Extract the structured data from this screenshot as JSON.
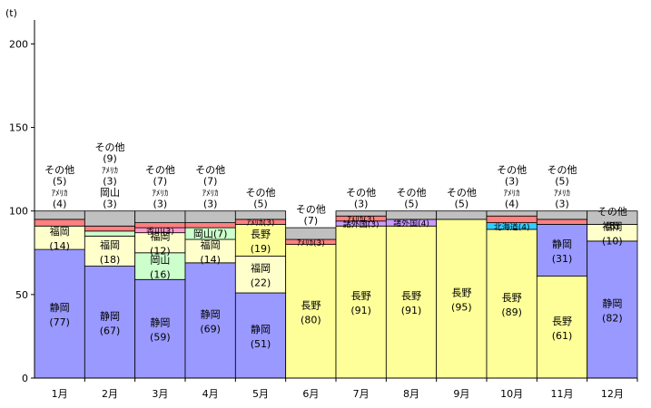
{
  "chart_data": {
    "type": "bar",
    "stacked": true,
    "title": "",
    "unit_label": "(t)",
    "xlabel": "",
    "ylabel": "",
    "ylim": [
      0,
      210
    ],
    "yticks": [
      0,
      50,
      100,
      150,
      200
    ],
    "categories": [
      "1月",
      "2月",
      "3月",
      "4月",
      "5月",
      "6月",
      "7月",
      "8月",
      "9月",
      "10月",
      "11月",
      "12月"
    ],
    "colors": {
      "静岡": "#9999ff",
      "長野": "#ffff99",
      "福岡": "#ffffcc",
      "岡山": "#ccffcc",
      "香川": "#ff99cc",
      "諸外国": "#cc99ff",
      "北海道": "#33ccff",
      "アメリカ": "#ff8080",
      "その他": "#c0c0c0"
    },
    "stacks": [
      {
        "category": "1月",
        "segments": [
          {
            "name": "静岡",
            "value": 77,
            "text": "静岡",
            "sub": "(77)"
          },
          {
            "name": "福岡",
            "value": 14,
            "text": "福岡",
            "sub": "(14)"
          },
          {
            "name": "アメリカ",
            "value": 4,
            "text": "",
            "sub": ""
          },
          {
            "name": "その他",
            "value": 5,
            "text": "",
            "sub": ""
          }
        ],
        "callouts": [
          "その他",
          "(5)",
          "ｱﾒﾘｶ",
          "(4)"
        ]
      },
      {
        "category": "2月",
        "segments": [
          {
            "name": "静岡",
            "value": 67,
            "text": "静岡",
            "sub": "(67)"
          },
          {
            "name": "福岡",
            "value": 18,
            "text": "福岡",
            "sub": "(18)"
          },
          {
            "name": "岡山",
            "value": 3,
            "text": "",
            "sub": ""
          },
          {
            "name": "アメリカ",
            "value": 3,
            "text": "",
            "sub": ""
          },
          {
            "name": "その他",
            "value": 9,
            "text": "",
            "sub": ""
          }
        ],
        "callouts": [
          "その他",
          "(9)",
          "ｱﾒﾘｶ",
          "(3)",
          "岡山",
          "(3)"
        ]
      },
      {
        "category": "3月",
        "segments": [
          {
            "name": "静岡",
            "value": 59,
            "text": "静岡",
            "sub": "(59)"
          },
          {
            "name": "岡山",
            "value": 16,
            "text": "岡山",
            "sub": "(16)"
          },
          {
            "name": "福岡",
            "value": 12,
            "text": "福岡",
            "sub": "(12)"
          },
          {
            "name": "香川",
            "value": 3,
            "text": "香川(3)",
            "sub": ""
          },
          {
            "name": "アメリカ",
            "value": 3,
            "text": "",
            "sub": ""
          },
          {
            "name": "その他",
            "value": 7,
            "text": "",
            "sub": ""
          }
        ],
        "callouts": [
          "その他",
          "(7)",
          "ｱﾒﾘｶ",
          "(3)"
        ]
      },
      {
        "category": "4月",
        "segments": [
          {
            "name": "静岡",
            "value": 69,
            "text": "静岡",
            "sub": "(69)"
          },
          {
            "name": "福岡",
            "value": 14,
            "text": "福岡",
            "sub": "(14)"
          },
          {
            "name": "岡山",
            "value": 7,
            "text": "岡山(7)",
            "sub": ""
          },
          {
            "name": "アメリカ",
            "value": 3,
            "text": "",
            "sub": ""
          },
          {
            "name": "その他",
            "value": 7,
            "text": "",
            "sub": ""
          }
        ],
        "callouts": [
          "その他",
          "(7)",
          "ｱﾒﾘｶ",
          "(3)"
        ]
      },
      {
        "category": "5月",
        "segments": [
          {
            "name": "静岡",
            "value": 51,
            "text": "静岡",
            "sub": "(51)"
          },
          {
            "name": "福岡",
            "value": 22,
            "text": "福岡",
            "sub": "(22)"
          },
          {
            "name": "長野",
            "value": 19,
            "text": "長野",
            "sub": "(19)"
          },
          {
            "name": "アメリカ",
            "value": 3,
            "text": "ｱﾒﾘｶ(3)",
            "sub": ""
          },
          {
            "name": "その他",
            "value": 5,
            "text": "",
            "sub": ""
          }
        ],
        "callouts": [
          "その他",
          "(5)"
        ]
      },
      {
        "category": "6月",
        "segments": [
          {
            "name": "長野",
            "value": 80,
            "text": "長野",
            "sub": "(80)"
          },
          {
            "name": "アメリカ",
            "value": 3,
            "text": "ｱﾒﾘｶ(3)",
            "sub": ""
          },
          {
            "name": "その他",
            "value": 7,
            "text": "",
            "sub": ""
          }
        ],
        "callouts": [
          "その他",
          "(7)"
        ]
      },
      {
        "category": "7月",
        "segments": [
          {
            "name": "長野",
            "value": 91,
            "text": "長野",
            "sub": "(91)"
          },
          {
            "name": "諸外国",
            "value": 3,
            "text": "諸外国(3)",
            "sub": ""
          },
          {
            "name": "アメリカ",
            "value": 3,
            "text": "ｱﾒﾘｶ(3)",
            "sub": ""
          },
          {
            "name": "その他",
            "value": 3,
            "text": "",
            "sub": ""
          }
        ],
        "callouts": [
          "その他",
          "(3)"
        ]
      },
      {
        "category": "8月",
        "segments": [
          {
            "name": "長野",
            "value": 91,
            "text": "長野",
            "sub": "(91)"
          },
          {
            "name": "諸外国",
            "value": 4,
            "text": "諸外国(4)",
            "sub": ""
          },
          {
            "name": "その他",
            "value": 5,
            "text": "",
            "sub": ""
          }
        ],
        "callouts": [
          "その他",
          "(5)"
        ]
      },
      {
        "category": "9月",
        "segments": [
          {
            "name": "長野",
            "value": 95,
            "text": "長野",
            "sub": "(95)"
          },
          {
            "name": "その他",
            "value": 5,
            "text": "",
            "sub": ""
          }
        ],
        "callouts": [
          "その他",
          "(5)"
        ]
      },
      {
        "category": "10月",
        "segments": [
          {
            "name": "長野",
            "value": 89,
            "text": "長野",
            "sub": "(89)"
          },
          {
            "name": "北海道",
            "value": 4,
            "text": "北海道(4)",
            "sub": ""
          },
          {
            "name": "アメリカ",
            "value": 4,
            "text": "",
            "sub": ""
          },
          {
            "name": "その他",
            "value": 3,
            "text": "",
            "sub": ""
          }
        ],
        "callouts": [
          "その他",
          "(3)",
          "ｱﾒﾘｶ",
          "(4)"
        ]
      },
      {
        "category": "11月",
        "segments": [
          {
            "name": "長野",
            "value": 61,
            "text": "長野",
            "sub": "(61)"
          },
          {
            "name": "静岡",
            "value": 31,
            "text": "静岡",
            "sub": "(31)"
          },
          {
            "name": "アメリカ",
            "value": 3,
            "text": "",
            "sub": ""
          },
          {
            "name": "その他",
            "value": 5,
            "text": "",
            "sub": ""
          }
        ],
        "callouts": [
          "その他",
          "(5)",
          "ｱﾒﾘｶ",
          "(3)"
        ]
      },
      {
        "category": "12月",
        "segments": [
          {
            "name": "静岡",
            "value": 82,
            "text": "静岡",
            "sub": "(82)"
          },
          {
            "name": "福岡",
            "value": 10,
            "text": "福岡",
            "sub": "(10)"
          },
          {
            "name": "その他",
            "value": 8,
            "text": "その他",
            "sub": "(8)"
          }
        ],
        "callouts": []
      }
    ]
  }
}
